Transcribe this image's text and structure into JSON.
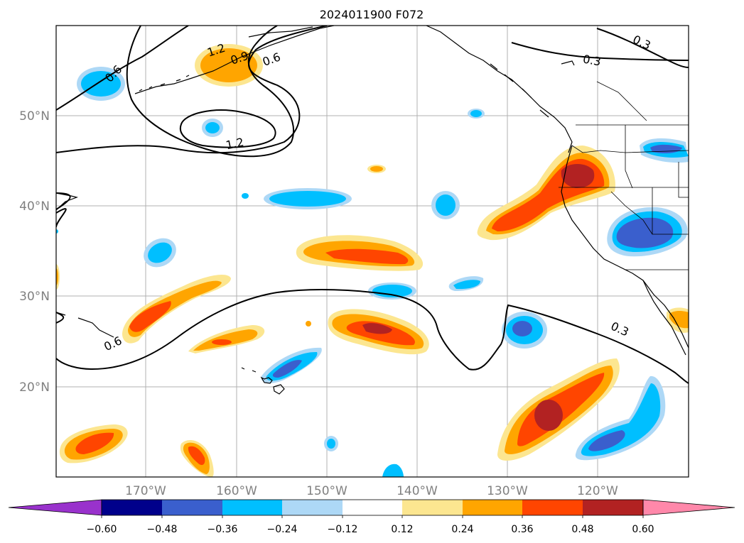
{
  "title": "2024011900 F072",
  "lat_labels": [
    "50°N",
    "40°N",
    "30°N",
    "20°N"
  ],
  "lon_labels": [
    "170°W",
    "160°W",
    "150°W",
    "140°W",
    "130°W",
    "120°W"
  ],
  "contour_labels": [
    "1.2",
    "0.9",
    "0.6",
    "0.6",
    "1.2",
    "0.3",
    "0.3",
    "0.3",
    "0.6"
  ],
  "colorbar": {
    "tick_labels": [
      "−0.60",
      "−0.48",
      "−0.36",
      "−0.24",
      "−0.12",
      "0.12",
      "0.24",
      "0.36",
      "0.48",
      "0.60"
    ],
    "colors": [
      "#9932cc",
      "#00008b",
      "#3a5fcd",
      "#00bfff",
      "#add8f6",
      "#ffffff",
      "#fce690",
      "#ffa500",
      "#ff4500",
      "#b22222",
      "#ff88aa"
    ]
  },
  "colors": {
    "neg_strong": "#3a5fcd",
    "neg_mid": "#00bfff",
    "neg_weak": "#add8f6",
    "pos_weak": "#fce690",
    "pos_mid": "#ffa500",
    "pos_strong": "#ff4500",
    "pos_max": "#b22222"
  }
}
